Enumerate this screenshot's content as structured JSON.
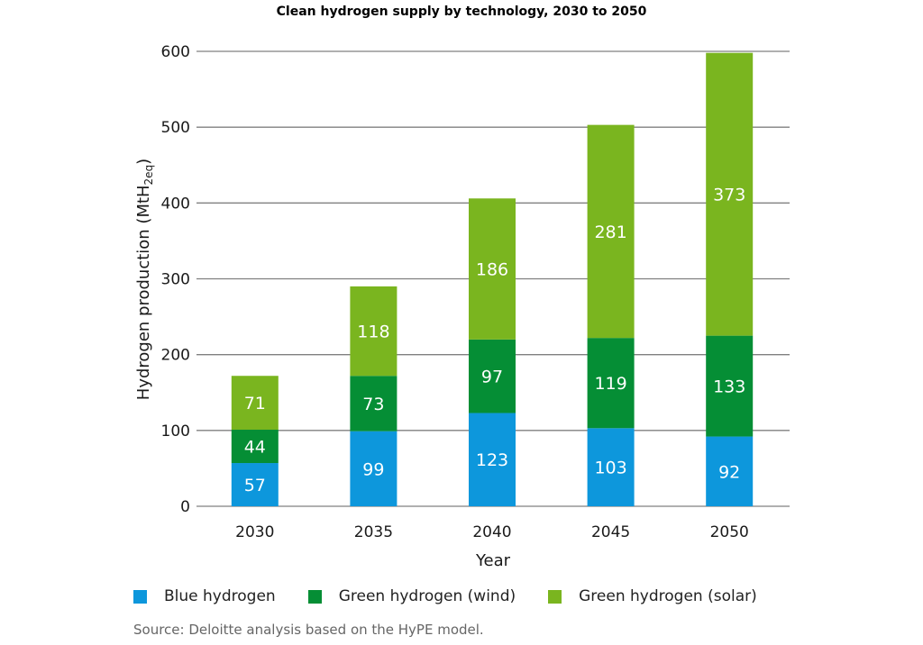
{
  "chart_data": {
    "type": "bar",
    "stacked": true,
    "title": "Clean hydrogen supply by technology, 2030 to 2050",
    "xlabel": "Year",
    "ylabel": "Hydrogen production (MtH",
    "ylabel_sub": "2eq",
    "ylabel_close": ")",
    "ylim": [
      0,
      600
    ],
    "yticks": [
      0,
      100,
      200,
      300,
      400,
      500,
      600
    ],
    "grid": true,
    "categories": [
      "2030",
      "2035",
      "2040",
      "2045",
      "2050"
    ],
    "series": [
      {
        "name": "Blue hydrogen",
        "color": "#0d97dc",
        "values": [
          57,
          99,
          123,
          103,
          92
        ]
      },
      {
        "name": "Green hydrogen (wind)",
        "color": "#058e35",
        "values": [
          44,
          73,
          97,
          119,
          133
        ]
      },
      {
        "name": "Green hydrogen (solar)",
        "color": "#7ab51f",
        "values": [
          71,
          118,
          186,
          281,
          373
        ]
      }
    ],
    "legend_position": "bottom",
    "source": "Source: Deloitte analysis based on the HyPE model."
  }
}
